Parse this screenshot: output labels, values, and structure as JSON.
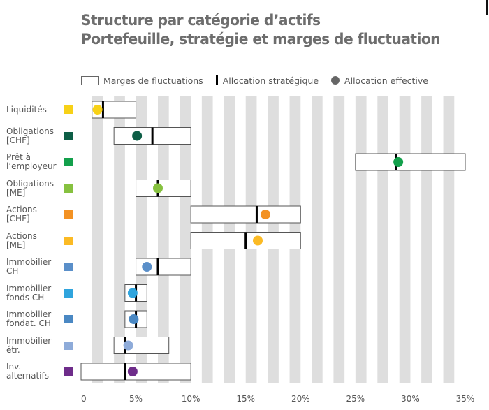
{
  "colors": {
    "stripe": "#dedede",
    "box_stroke": "#555555",
    "strategic": "#000000",
    "legend_dot": "#6b6b6b",
    "text": "#555555"
  },
  "chart_data": {
    "type": "range-dot",
    "title": "Structure par catégorie d’actifs\nPortefeuille, stratégie et marges de fluctuation",
    "xlim": [
      0,
      35
    ],
    "x_ticks": [
      {
        "value": 0,
        "label": "0"
      },
      {
        "value": 5,
        "label": "5%"
      },
      {
        "value": 10,
        "label": "10%"
      },
      {
        "value": 15,
        "label": "15%"
      },
      {
        "value": 20,
        "label": "20%"
      },
      {
        "value": 25,
        "label": "25%"
      },
      {
        "value": 30,
        "label": "30%"
      },
      {
        "value": 35,
        "label": "35%"
      }
    ],
    "legend": {
      "range": "Marges de fluctuations",
      "strategic": "Allocation stratégique",
      "effective": "Allocation effective"
    },
    "categories": [
      {
        "label": "Liquidités",
        "color": "#f7d117",
        "range": [
          1,
          5
        ],
        "strategic": 2,
        "effective": 1.5
      },
      {
        "label": "Obligations\n[CHF]",
        "color": "#0d5e46",
        "range": [
          3,
          10
        ],
        "strategic": 6.5,
        "effective": 5.1
      },
      {
        "label": "Prêt à\nl’employeur",
        "color": "#13a04b",
        "range": [
          25,
          35
        ],
        "strategic": 28.7,
        "effective": 28.9
      },
      {
        "label": "Obligations\n[ME]",
        "color": "#86c13f",
        "range": [
          5,
          10
        ],
        "strategic": 7,
        "effective": 7
      },
      {
        "label": "Actions\n[CHF]",
        "color": "#f39224",
        "range": [
          10,
          20
        ],
        "strategic": 16,
        "effective": 16.8
      },
      {
        "label": "Actions\n[ME]",
        "color": "#fbba24",
        "range": [
          10,
          20
        ],
        "strategic": 15,
        "effective": 16.1
      },
      {
        "label": "Immobilier\nCH",
        "color": "#5a8fc9",
        "range": [
          5,
          10
        ],
        "strategic": 7,
        "effective": 6
      },
      {
        "label": "Immobilier\nfonds CH",
        "color": "#2fa4dd",
        "range": [
          4,
          6
        ],
        "strategic": 5,
        "effective": 4.7
      },
      {
        "label": "Immobilier\nfondat. CH",
        "color": "#4a88c3",
        "range": [
          4,
          6
        ],
        "strategic": 5,
        "effective": 4.8
      },
      {
        "label": "Immobilier\nétr.",
        "color": "#8eabd9",
        "range": [
          3,
          8
        ],
        "strategic": 4,
        "effective": 4.3
      },
      {
        "label": "Inv.\nalternatifs",
        "color": "#6e2c8a",
        "range": [
          0,
          10
        ],
        "strategic": 4,
        "effective": 4.7
      }
    ]
  }
}
